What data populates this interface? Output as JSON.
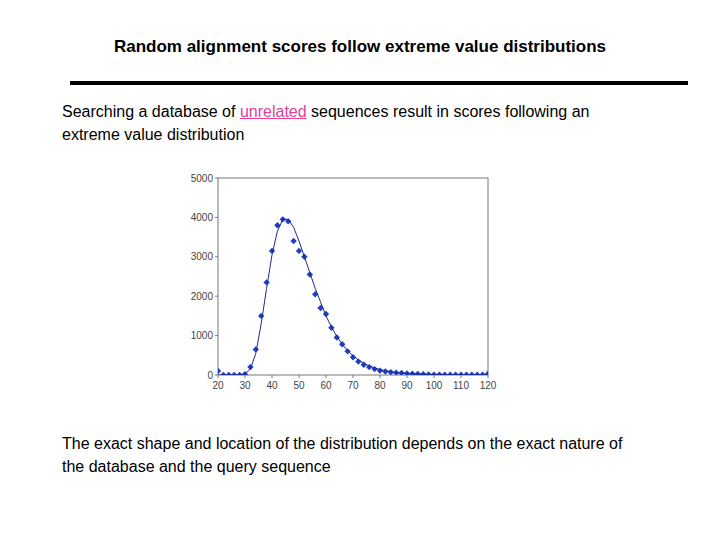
{
  "title": "Random alignment scores follow extreme value distributions",
  "intro": {
    "before": "Searching a database of ",
    "highlight": "unrelated",
    "after": " sequences result in scores following an extreme value distribution"
  },
  "footer": "The exact shape and location of the distribution depends on the exact nature of the database and the query sequence",
  "chart_data": {
    "type": "scatter",
    "x": [
      20,
      22,
      24,
      26,
      28,
      30,
      32,
      34,
      36,
      38,
      40,
      42,
      44,
      46,
      48,
      50,
      52,
      54,
      56,
      58,
      60,
      62,
      64,
      66,
      68,
      70,
      72,
      74,
      76,
      78,
      80,
      82,
      84,
      86,
      88,
      90,
      92,
      94,
      96,
      98,
      100,
      102,
      104,
      106,
      108,
      110,
      112,
      114,
      116,
      118,
      120
    ],
    "series": [
      {
        "type": "scatter",
        "marker": "diamond",
        "color": "#1f3fc8",
        "values": [
          100,
          0,
          0,
          0,
          0,
          20,
          200,
          650,
          1500,
          2350,
          3150,
          3800,
          3950,
          3900,
          3400,
          3150,
          3000,
          2550,
          2050,
          1700,
          1550,
          1200,
          950,
          780,
          600,
          450,
          340,
          260,
          200,
          150,
          110,
          90,
          70,
          60,
          50,
          40,
          30,
          25,
          20,
          15,
          10,
          10,
          5,
          5,
          5,
          5,
          5,
          5,
          5,
          5,
          30
        ]
      },
      {
        "type": "line",
        "line_style": "solid",
        "color": "#1c2a8c",
        "values": [
          0,
          0,
          0,
          0,
          0,
          30,
          150,
          550,
          1300,
          2200,
          3050,
          3650,
          3950,
          3950,
          3750,
          3400,
          3000,
          2600,
          2200,
          1850,
          1500,
          1220,
          980,
          780,
          620,
          490,
          380,
          300,
          230,
          180,
          140,
          110,
          85,
          65,
          50,
          40,
          30,
          24,
          18,
          14,
          11,
          8,
          6,
          5,
          4,
          3,
          2,
          2,
          1,
          1,
          1
        ]
      }
    ],
    "xlim": [
      20,
      120
    ],
    "xticks": [
      20,
      30,
      40,
      50,
      60,
      70,
      80,
      90,
      100,
      110,
      120
    ],
    "ylim": [
      0,
      5000
    ],
    "yticks": [
      0,
      1000,
      2000,
      3000,
      4000,
      5000
    ],
    "grid": false
  }
}
